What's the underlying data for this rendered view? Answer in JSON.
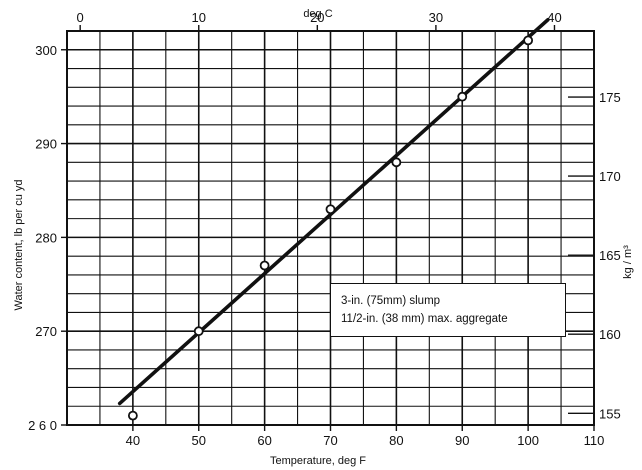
{
  "chart_data": {
    "type": "scatter",
    "xlabel": "Temperature, deg F",
    "ylabel": "Water content, lb per cu yd",
    "top_axis_label": "deg C",
    "right_axis_label": "kg / m³",
    "xlim": [
      30,
      110
    ],
    "ylim": [
      260,
      302
    ],
    "x_ticks": [
      "40",
      "50",
      "60",
      "70",
      "80",
      "90",
      "100",
      "110"
    ],
    "y_ticks": [
      "2 6 0",
      "270",
      "280",
      "290",
      "300"
    ],
    "top_ticks": [
      {
        "value": 0,
        "label": "0"
      },
      {
        "value": 10,
        "label": "10"
      },
      {
        "value": 20,
        "label": "20"
      },
      {
        "value": 30,
        "label": "30"
      },
      {
        "value": 40,
        "label": "40"
      }
    ],
    "right_ticks": [
      {
        "value": 155,
        "label": "155"
      },
      {
        "value": 160,
        "label": "160"
      },
      {
        "value": 165,
        "label": "165"
      },
      {
        "value": 170,
        "label": "170"
      },
      {
        "value": 175,
        "label": "175"
      }
    ],
    "grid": true,
    "points": [
      {
        "x": 40,
        "y": 261
      },
      {
        "x": 50,
        "y": 270
      },
      {
        "x": 60,
        "y": 277
      },
      {
        "x": 70,
        "y": 283
      },
      {
        "x": 80,
        "y": 288
      },
      {
        "x": 90,
        "y": 295
      },
      {
        "x": 100,
        "y": 301
      }
    ],
    "fit_line": {
      "x": [
        38,
        103
      ],
      "y": [
        262.3,
        303.2
      ]
    },
    "annotation": [
      "3-in. (75mm) slump",
      "11/2-in. (38 mm) max. aggregate"
    ]
  }
}
